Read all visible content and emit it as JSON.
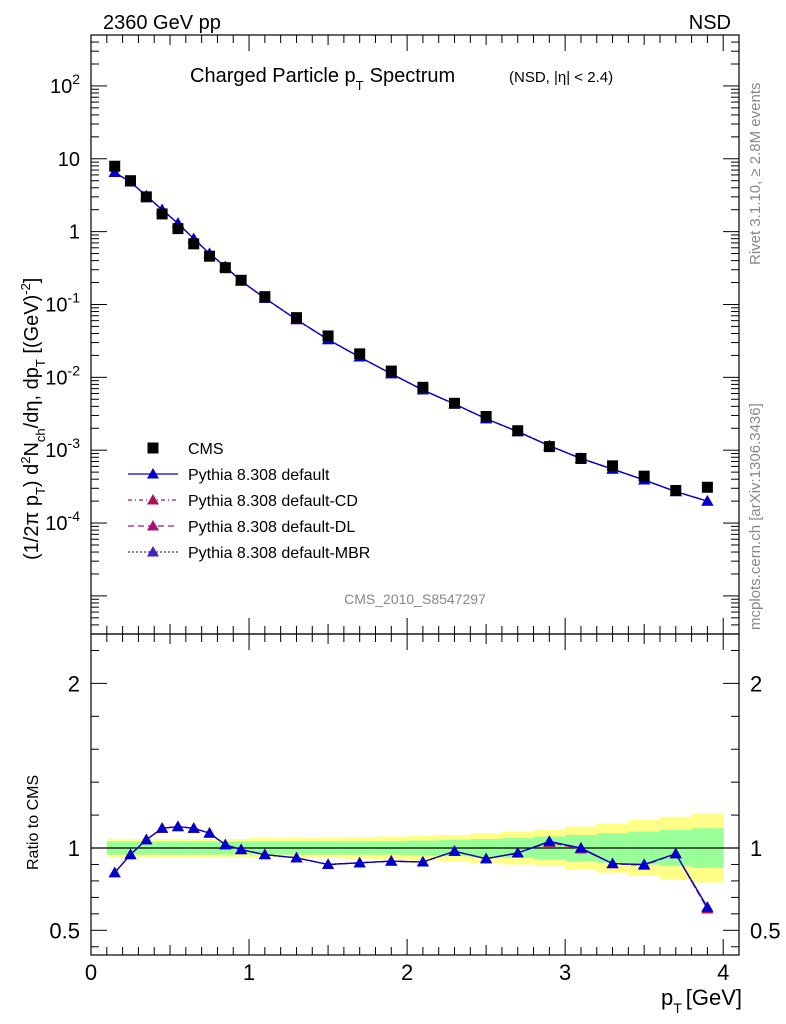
{
  "header": {
    "left": "2360 GeV pp",
    "right": "NSD"
  },
  "side_text": {
    "rivet": "Rivet 3.1.10, ≥ 2.8M events",
    "mcplots": "mcplots.cern.ch [arXiv:1306.3436]"
  },
  "watermark": "CMS_2010_S8547297",
  "colors": {
    "cms": "#000000",
    "default": "#0000cc",
    "cd": "#aa1155",
    "dl": "#aa1177",
    "mbr": "#4422bb",
    "band_inner": "#99ff99",
    "band_outer": "#ffff88"
  },
  "chart_data": [
    {
      "type": "scatter",
      "title": "Charged Particle p_T Spectrum",
      "title_suffix": "(NSD, |η| < 2.4)",
      "ylabel": "(1/2π p_T) d²N_ch/dη, dp_T [(GeV)^-2]",
      "yscale": "log",
      "xlim": [
        0,
        4.1
      ],
      "ylim": [
        3e-06,
        500
      ],
      "y_tick_labels": [
        "10^-4",
        "10^-3",
        "10^-2",
        "10^-1",
        "1",
        "10",
        "10^2"
      ],
      "legend_position": "bottom-left",
      "x": [
        0.15,
        0.25,
        0.35,
        0.45,
        0.55,
        0.65,
        0.75,
        0.85,
        0.95,
        1.1,
        1.3,
        1.5,
        1.7,
        1.9,
        2.1,
        2.3,
        2.5,
        2.7,
        2.9,
        3.1,
        3.3,
        3.5,
        3.7,
        3.9
      ],
      "series": [
        {
          "name": "CMS",
          "marker": "square",
          "values": [
            7.9,
            5.0,
            3.0,
            1.75,
            1.1,
            0.68,
            0.46,
            0.32,
            0.215,
            0.128,
            0.066,
            0.037,
            0.021,
            0.0122,
            0.0073,
            0.0044,
            0.0029,
            0.00185,
            0.00112,
            0.00077,
            0.00061,
            0.00044,
            0.00028,
            0.00031
          ]
        },
        {
          "name": "Pythia 8.308 default",
          "marker": "triangle",
          "values": [
            6.5,
            4.8,
            3.1,
            2.0,
            1.3,
            0.8,
            0.5,
            0.33,
            0.21,
            0.122,
            0.062,
            0.033,
            0.019,
            0.0112,
            0.0067,
            0.0043,
            0.0027,
            0.0018,
            0.00115,
            0.00077,
            0.00055,
            0.00039,
            0.00027,
            0.0002
          ]
        },
        {
          "name": "Pythia 8.308 default-CD",
          "marker": "triangle",
          "values": [
            6.5,
            4.8,
            3.1,
            2.0,
            1.3,
            0.8,
            0.5,
            0.33,
            0.21,
            0.122,
            0.062,
            0.033,
            0.019,
            0.0112,
            0.0067,
            0.0043,
            0.0027,
            0.0018,
            0.00115,
            0.00077,
            0.00055,
            0.00039,
            0.00027,
            0.0002
          ]
        },
        {
          "name": "Pythia 8.308 default-DL",
          "marker": "triangle",
          "values": [
            6.5,
            4.8,
            3.1,
            2.0,
            1.3,
            0.8,
            0.5,
            0.33,
            0.21,
            0.122,
            0.062,
            0.033,
            0.019,
            0.0112,
            0.0067,
            0.0043,
            0.0027,
            0.0018,
            0.00115,
            0.00077,
            0.00055,
            0.00039,
            0.00027,
            0.0002
          ]
        },
        {
          "name": "Pythia 8.308 default-MBR",
          "marker": "triangle",
          "values": [
            6.5,
            4.8,
            3.1,
            2.0,
            1.3,
            0.8,
            0.5,
            0.33,
            0.21,
            0.122,
            0.062,
            0.033,
            0.019,
            0.0112,
            0.0067,
            0.0043,
            0.0027,
            0.0018,
            0.00115,
            0.00077,
            0.00055,
            0.00039,
            0.00027,
            0.0002
          ]
        }
      ]
    },
    {
      "type": "line",
      "xlabel": "p_T [GeV]",
      "ylabel": "Ratio to CMS",
      "xlim": [
        0,
        4.1
      ],
      "ylim": [
        0.35,
        2.3
      ],
      "x_tick_labels": [
        "0",
        "1",
        "2",
        "3",
        "4"
      ],
      "y_tick_labels": [
        "0.5",
        "1",
        "2"
      ],
      "x": [
        0.15,
        0.25,
        0.35,
        0.45,
        0.55,
        0.65,
        0.75,
        0.85,
        0.95,
        1.1,
        1.3,
        1.5,
        1.7,
        1.9,
        2.1,
        2.3,
        2.5,
        2.7,
        2.9,
        3.1,
        3.3,
        3.5,
        3.7,
        3.9
      ],
      "bands": {
        "edges": [
          0.1,
          0.2,
          0.3,
          0.4,
          0.5,
          0.6,
          0.7,
          0.8,
          0.9,
          1.0,
          1.2,
          1.4,
          1.6,
          1.8,
          2.0,
          2.2,
          2.4,
          2.6,
          2.8,
          3.0,
          3.2,
          3.4,
          3.6,
          3.8,
          4.0
        ],
        "inner_halfwidth": [
          0.04,
          0.04,
          0.04,
          0.04,
          0.04,
          0.04,
          0.04,
          0.04,
          0.04,
          0.04,
          0.04,
          0.04,
          0.04,
          0.04,
          0.045,
          0.05,
          0.055,
          0.06,
          0.07,
          0.08,
          0.09,
          0.1,
          0.11,
          0.12
        ],
        "outer_halfwidth": [
          0.055,
          0.055,
          0.055,
          0.055,
          0.055,
          0.055,
          0.055,
          0.055,
          0.055,
          0.06,
          0.06,
          0.06,
          0.065,
          0.07,
          0.075,
          0.08,
          0.09,
          0.1,
          0.11,
          0.13,
          0.15,
          0.17,
          0.19,
          0.21
        ]
      },
      "series": [
        {
          "name": "Pythia 8.308 default",
          "values": [
            0.85,
            0.96,
            1.05,
            1.12,
            1.13,
            1.12,
            1.09,
            1.02,
            0.99,
            0.96,
            0.94,
            0.9,
            0.91,
            0.92,
            0.915,
            0.98,
            0.935,
            0.97,
            1.04,
            1.0,
            0.905,
            0.9,
            0.965,
            0.64
          ]
        },
        {
          "name": "Pythia 8.308 default-CD",
          "values": [
            0.85,
            0.96,
            1.05,
            1.12,
            1.13,
            1.12,
            1.09,
            1.02,
            0.99,
            0.96,
            0.94,
            0.9,
            0.91,
            0.92,
            0.915,
            0.98,
            0.935,
            0.97,
            1.035,
            0.995,
            0.905,
            0.895,
            0.965,
            0.63
          ]
        },
        {
          "name": "Pythia 8.308 default-DL",
          "values": [
            0.85,
            0.96,
            1.05,
            1.12,
            1.13,
            1.12,
            1.09,
            1.02,
            0.99,
            0.96,
            0.94,
            0.9,
            0.91,
            0.92,
            0.915,
            0.98,
            0.935,
            0.97,
            1.035,
            0.995,
            0.905,
            0.895,
            0.965,
            0.63
          ]
        },
        {
          "name": "Pythia 8.308 default-MBR",
          "values": [
            0.85,
            0.96,
            1.05,
            1.12,
            1.13,
            1.12,
            1.09,
            1.02,
            0.99,
            0.96,
            0.94,
            0.9,
            0.91,
            0.92,
            0.915,
            0.98,
            0.935,
            0.97,
            1.04,
            1.0,
            0.905,
            0.9,
            0.965,
            0.64
          ]
        }
      ]
    }
  ]
}
